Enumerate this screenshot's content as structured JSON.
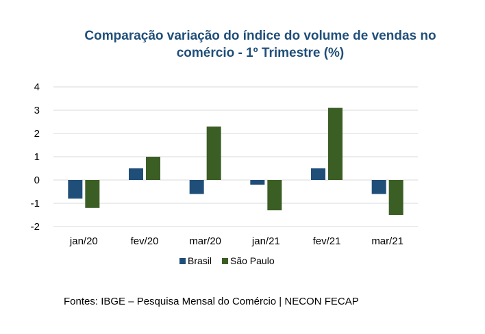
{
  "chart_data": {
    "type": "bar",
    "title": "Comparação variação do índice do volume de vendas no comércio - 1º Trimestre (%)",
    "title_lines": [
      "Comparação variação do índice do volume de vendas no",
      "comércio - 1º Trimestre (%)"
    ],
    "categories": [
      "jan/20",
      "fev/20",
      "mar/20",
      "jan/21",
      "fev/21",
      "mar/21"
    ],
    "series": [
      {
        "name": "Brasil",
        "color": "#1f4e79",
        "values": [
          -0.8,
          0.5,
          -0.6,
          -0.2,
          0.5,
          -0.6
        ]
      },
      {
        "name": "São Paulo",
        "color": "#3b5e24",
        "values": [
          -1.2,
          1.0,
          2.3,
          -1.3,
          3.1,
          -1.5
        ]
      }
    ],
    "ylim": [
      -2,
      4
    ],
    "yticks": [
      4,
      3,
      2,
      1,
      0,
      -1,
      -2
    ],
    "grid": true,
    "legend_position": "bottom"
  },
  "footer": {
    "source": "Fontes: IBGE – Pesquisa Mensal do Comércio | NECON FECAP"
  }
}
